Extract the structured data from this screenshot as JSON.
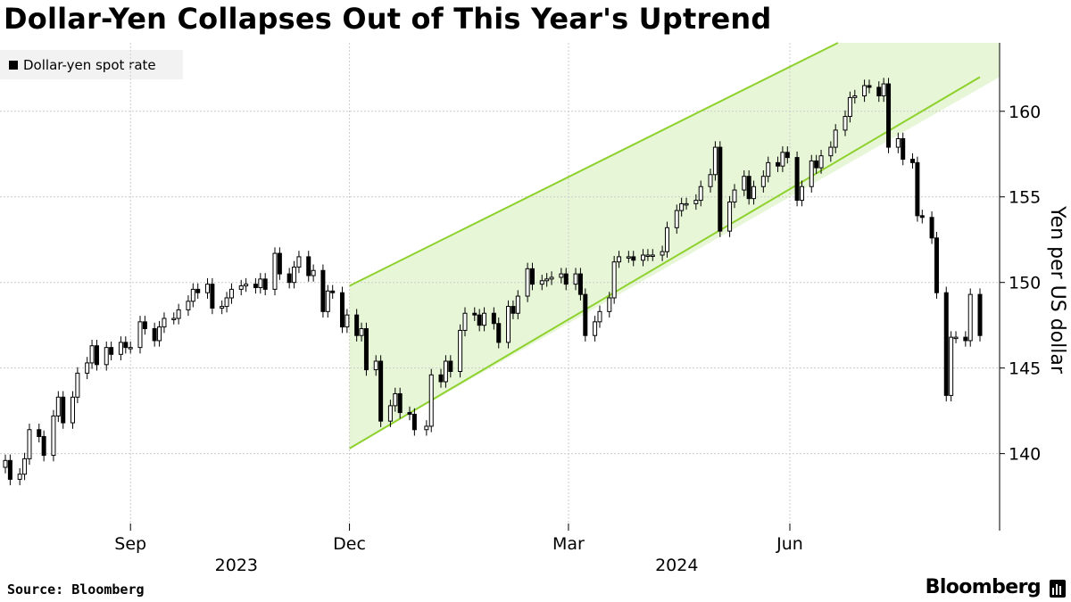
{
  "title": "Dollar-Yen Collapses Out of This Year's Uptrend",
  "legend": {
    "label": "Dollar-yen spot rate",
    "color": "#000000"
  },
  "source": "Source: Bloomberg",
  "brand": "Bloomberg",
  "colors": {
    "channel_fill": "#e6f6d6",
    "channel_line": "#8ed12c",
    "grid": "#cccccc",
    "candle": "#000000"
  },
  "chart_data": {
    "type": "candlestick",
    "title": "Dollar-Yen Collapses Out of This Year's Uptrend",
    "ylabel": "Yen per US dollar",
    "xlabel": "",
    "ylim": [
      135.5,
      164
    ],
    "xlim": [
      "2023-07-11",
      "2024-08-19"
    ],
    "y_ticks": [
      140,
      145,
      150,
      155,
      160
    ],
    "x_ticks": [
      {
        "date": "2023-09-01",
        "label": "Sep"
      },
      {
        "date": "2023-12-01",
        "label": "Dec"
      },
      {
        "date": "2024-03-01",
        "label": "Mar"
      },
      {
        "date": "2024-06-01",
        "label": "Jun"
      }
    ],
    "year_labels": [
      {
        "label": "2023",
        "date": "2023-10-15"
      },
      {
        "label": "2024",
        "date": "2024-04-15"
      }
    ],
    "grid": true,
    "legend_position": "top-left",
    "annotations": [
      {
        "type": "channel",
        "upper": [
          [
            "2023-12-01",
            149.8
          ],
          [
            "2024-06-21",
            164.0
          ]
        ],
        "lower": [
          [
            "2023-12-01",
            140.3
          ],
          [
            "2024-08-19",
            162.0
          ]
        ]
      }
    ],
    "series": [
      {
        "name": "Dollar-yen spot rate",
        "points": [
          [
            "2023-07-11",
            139.6
          ],
          [
            "2023-07-13",
            138.5
          ],
          [
            "2023-07-17",
            138.8
          ],
          [
            "2023-07-19",
            139.7
          ],
          [
            "2023-07-21",
            141.4
          ],
          [
            "2023-07-25",
            141.0
          ],
          [
            "2023-07-27",
            139.9
          ],
          [
            "2023-07-31",
            142.2
          ],
          [
            "2023-08-02",
            143.3
          ],
          [
            "2023-08-04",
            141.8
          ],
          [
            "2023-08-08",
            143.3
          ],
          [
            "2023-08-10",
            144.7
          ],
          [
            "2023-08-14",
            145.3
          ],
          [
            "2023-08-16",
            146.3
          ],
          [
            "2023-08-18",
            145.2
          ],
          [
            "2023-08-22",
            146.2
          ],
          [
            "2023-08-24",
            145.8
          ],
          [
            "2023-08-28",
            146.5
          ],
          [
            "2023-08-30",
            146.2
          ],
          [
            "2023-09-01",
            146.2
          ],
          [
            "2023-09-05",
            147.7
          ],
          [
            "2023-09-07",
            147.3
          ],
          [
            "2023-09-11",
            146.6
          ],
          [
            "2023-09-13",
            147.4
          ],
          [
            "2023-09-15",
            147.9
          ],
          [
            "2023-09-19",
            147.9
          ],
          [
            "2023-09-21",
            148.4
          ],
          [
            "2023-09-25",
            148.9
          ],
          [
            "2023-09-27",
            149.6
          ],
          [
            "2023-09-29",
            149.4
          ],
          [
            "2023-10-03",
            149.9
          ],
          [
            "2023-10-05",
            148.5
          ],
          [
            "2023-10-09",
            148.6
          ],
          [
            "2023-10-11",
            149.1
          ],
          [
            "2023-10-13",
            149.6
          ],
          [
            "2023-10-17",
            149.8
          ],
          [
            "2023-10-19",
            149.9
          ],
          [
            "2023-10-23",
            149.7
          ],
          [
            "2023-10-25",
            150.2
          ],
          [
            "2023-10-27",
            149.6
          ],
          [
            "2023-10-31",
            151.7
          ],
          [
            "2023-11-02",
            150.5
          ],
          [
            "2023-11-06",
            150.0
          ],
          [
            "2023-11-08",
            150.9
          ],
          [
            "2023-11-10",
            151.5
          ],
          [
            "2023-11-14",
            150.4
          ],
          [
            "2023-11-16",
            150.7
          ],
          [
            "2023-11-20",
            148.3
          ],
          [
            "2023-11-22",
            149.5
          ],
          [
            "2023-11-24",
            149.4
          ],
          [
            "2023-11-28",
            147.4
          ],
          [
            "2023-11-30",
            148.1
          ],
          [
            "2023-12-04",
            146.9
          ],
          [
            "2023-12-06",
            147.3
          ],
          [
            "2023-12-08",
            144.9
          ],
          [
            "2023-12-12",
            145.4
          ],
          [
            "2023-12-14",
            141.9
          ],
          [
            "2023-12-18",
            142.8
          ],
          [
            "2023-12-20",
            143.5
          ],
          [
            "2023-12-22",
            142.4
          ],
          [
            "2023-12-26",
            142.3
          ],
          [
            "2023-12-28",
            141.4
          ],
          [
            "2024-01-02",
            141.6
          ],
          [
            "2024-01-04",
            144.6
          ],
          [
            "2024-01-08",
            144.2
          ],
          [
            "2024-01-10",
            145.4
          ],
          [
            "2024-01-12",
            144.8
          ],
          [
            "2024-01-16",
            147.2
          ],
          [
            "2024-01-18",
            148.2
          ],
          [
            "2024-01-22",
            148.1
          ],
          [
            "2024-01-24",
            147.5
          ],
          [
            "2024-01-26",
            148.2
          ],
          [
            "2024-01-30",
            147.6
          ],
          [
            "2024-02-01",
            146.5
          ],
          [
            "2024-02-05",
            148.6
          ],
          [
            "2024-02-07",
            148.2
          ],
          [
            "2024-02-09",
            149.2
          ],
          [
            "2024-02-13",
            150.8
          ],
          [
            "2024-02-15",
            149.9
          ],
          [
            "2024-02-19",
            150.1
          ],
          [
            "2024-02-21",
            150.2
          ],
          [
            "2024-02-23",
            150.3
          ],
          [
            "2024-02-27",
            150.5
          ],
          [
            "2024-02-29",
            149.9
          ],
          [
            "2024-03-04",
            150.5
          ],
          [
            "2024-03-06",
            149.3
          ],
          [
            "2024-03-08",
            146.9
          ],
          [
            "2024-03-12",
            147.7
          ],
          [
            "2024-03-14",
            148.3
          ],
          [
            "2024-03-18",
            149.1
          ],
          [
            "2024-03-20",
            151.2
          ],
          [
            "2024-03-22",
            151.5
          ],
          [
            "2024-03-26",
            151.5
          ],
          [
            "2024-03-28",
            151.3
          ],
          [
            "2024-04-01",
            151.6
          ],
          [
            "2024-04-03",
            151.6
          ],
          [
            "2024-04-05",
            151.6
          ],
          [
            "2024-04-09",
            151.8
          ],
          [
            "2024-04-11",
            153.2
          ],
          [
            "2024-04-15",
            154.2
          ],
          [
            "2024-04-17",
            154.6
          ],
          [
            "2024-04-19",
            154.6
          ],
          [
            "2024-04-23",
            154.8
          ],
          [
            "2024-04-25",
            155.6
          ],
          [
            "2024-04-29",
            156.3
          ],
          [
            "2024-05-01",
            157.9
          ],
          [
            "2024-05-03",
            153.0
          ],
          [
            "2024-05-07",
            154.7
          ],
          [
            "2024-05-09",
            155.4
          ],
          [
            "2024-05-13",
            156.2
          ],
          [
            "2024-05-15",
            154.9
          ],
          [
            "2024-05-17",
            155.6
          ],
          [
            "2024-05-21",
            156.2
          ],
          [
            "2024-05-23",
            157.0
          ],
          [
            "2024-05-27",
            156.8
          ],
          [
            "2024-05-29",
            157.6
          ],
          [
            "2024-05-31",
            157.3
          ],
          [
            "2024-06-04",
            154.8
          ],
          [
            "2024-06-06",
            155.6
          ],
          [
            "2024-06-10",
            157.1
          ],
          [
            "2024-06-12",
            156.7
          ],
          [
            "2024-06-14",
            157.4
          ],
          [
            "2024-06-18",
            157.9
          ],
          [
            "2024-06-20",
            158.9
          ],
          [
            "2024-06-24",
            159.7
          ],
          [
            "2024-06-26",
            160.8
          ],
          [
            "2024-06-28",
            160.9
          ],
          [
            "2024-07-02",
            161.5
          ],
          [
            "2024-07-04",
            161.4
          ],
          [
            "2024-07-08",
            160.9
          ],
          [
            "2024-07-10",
            161.6
          ],
          [
            "2024-07-12",
            157.9
          ],
          [
            "2024-07-16",
            158.4
          ],
          [
            "2024-07-18",
            157.2
          ],
          [
            "2024-07-22",
            157.0
          ],
          [
            "2024-07-24",
            153.9
          ],
          [
            "2024-07-26",
            153.8
          ],
          [
            "2024-07-30",
            152.6
          ],
          [
            "2024-08-01",
            149.4
          ],
          [
            "2024-08-05",
            143.4
          ],
          [
            "2024-08-07",
            146.8
          ],
          [
            "2024-08-09",
            146.8
          ],
          [
            "2024-08-13",
            146.6
          ],
          [
            "2024-08-15",
            149.3
          ],
          [
            "2024-08-19",
            146.9
          ]
        ]
      }
    ]
  }
}
